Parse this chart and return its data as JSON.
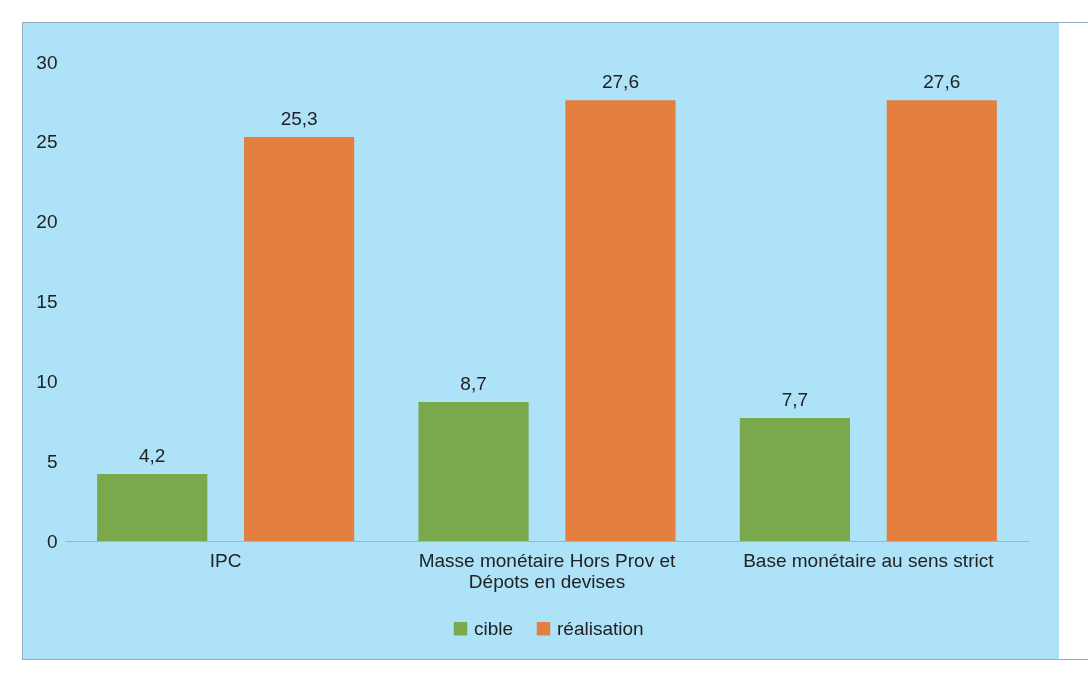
{
  "chart_data": {
    "type": "bar",
    "categories": [
      "IPC",
      "Masse monétaire Hors Prov et Dépots en devises",
      "Base monétaire au sens strict"
    ],
    "series": [
      {
        "name": "cible",
        "color": "#7aa84c",
        "values": [
          4.2,
          8.7,
          7.7
        ],
        "value_labels": [
          "4,2",
          "8,7",
          "7,7"
        ]
      },
      {
        "name": "réalisation",
        "color": "#e57f3f",
        "values": [
          25.3,
          27.6,
          27.6
        ],
        "value_labels": [
          "25,3",
          "27,6",
          "27,6"
        ]
      }
    ],
    "ylim": [
      0,
      30
    ],
    "yticks": [
      0,
      5,
      10,
      15,
      20,
      25,
      30
    ],
    "grid": false,
    "legend": "bottom"
  }
}
